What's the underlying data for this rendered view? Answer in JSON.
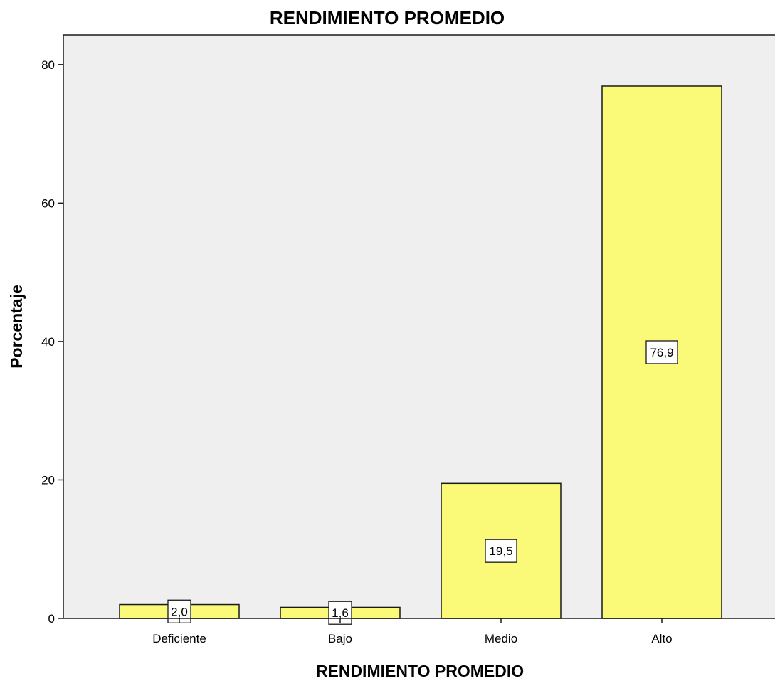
{
  "chart_data": {
    "type": "bar",
    "title": "RENDIMIENTO PROMEDIO",
    "xlabel": "RENDIMIENTO PROMEDIO",
    "ylabel": "Porcentaje",
    "categories": [
      "Deficiente",
      "Bajo",
      "Medio",
      "Alto"
    ],
    "values": [
      2.0,
      1.6,
      19.5,
      76.9
    ],
    "data_labels": [
      "2,0",
      "1,6",
      "19,5",
      "76,9"
    ],
    "yticks": [
      0,
      20,
      40,
      60,
      80
    ],
    "ytick_labels": [
      "0",
      "20",
      "40",
      "60",
      "80"
    ],
    "ylim": [
      0,
      84.3
    ],
    "grid": false,
    "legend": "none",
    "colors": {
      "bar_fill": "#fafa78",
      "bar_stroke": "#1a1a1a",
      "plot_background": "#efefef",
      "label_box_fill": "#ffffff"
    }
  }
}
